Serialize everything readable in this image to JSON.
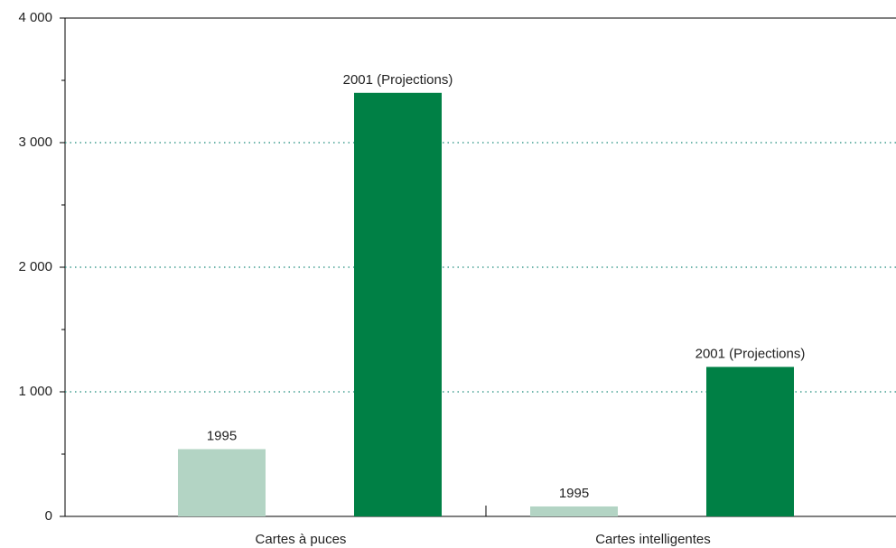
{
  "chart_data": {
    "type": "bar",
    "categories": [
      "Cartes à puces",
      "Cartes intelligentes"
    ],
    "series": [
      {
        "name": "1995",
        "color": "#b3d4c4",
        "values": [
          540,
          80
        ]
      },
      {
        "name": "2001 (Projections)",
        "color": "#008045",
        "values": [
          3400,
          1200
        ]
      }
    ],
    "ylim": [
      0,
      4000
    ],
    "yticks": [
      0,
      {
        "value": 1000,
        "label": "1 000"
      },
      {
        "value": 2000,
        "label": "2 000"
      },
      {
        "value": 3000,
        "label": "3 000"
      },
      {
        "value": 4000,
        "label": "4 000"
      }
    ],
    "yticks_minor": [
      500,
      1500,
      2500,
      3500
    ],
    "grid": true,
    "grid_color": "#1a8a7a"
  }
}
